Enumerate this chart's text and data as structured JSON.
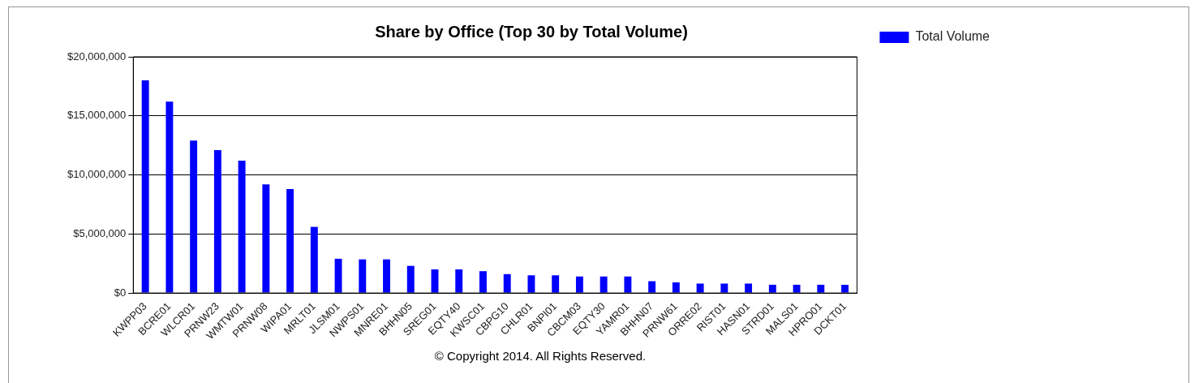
{
  "chart_data": {
    "type": "bar",
    "title": "Share by Office (Top 30 by Total Volume)",
    "categories": [
      "KWPP03",
      "BCRE01",
      "WLCR01",
      "PRNW23",
      "WMTW01",
      "PRNW08",
      "WIPA01",
      "MRLT01",
      "JLSM01",
      "NWPS01",
      "MNRE01",
      "BHHN05",
      "SREG01",
      "EQTY40",
      "KWSC01",
      "CBPG10",
      "CHLR01",
      "BNPI01",
      "CBCM03",
      "EQTY30",
      "YAMR01",
      "BHHN07",
      "PRNW61",
      "ORRE02",
      "RIST01",
      "HASN01",
      "STRD01",
      "MALS01",
      "HPRO01",
      "DCKT01"
    ],
    "series": [
      {
        "name": "Total Volume",
        "color": "#0000ff",
        "values": [
          18000000,
          16200000,
          12900000,
          12100000,
          11200000,
          9200000,
          8800000,
          5600000,
          2900000,
          2850000,
          2850000,
          2300000,
          2000000,
          2000000,
          1850000,
          1600000,
          1500000,
          1500000,
          1400000,
          1400000,
          1400000,
          1000000,
          900000,
          800000,
          800000,
          800000,
          700000,
          700000,
          700000,
          700000
        ]
      }
    ],
    "ylim": [
      0,
      20000000
    ],
    "yticks": [
      {
        "value": 0,
        "label": "$0"
      },
      {
        "value": 5000000,
        "label": "$5,000,000"
      },
      {
        "value": 10000000,
        "label": "$10,000,000"
      },
      {
        "value": 15000000,
        "label": "$15,000,000"
      },
      {
        "value": 20000000,
        "label": "$20,000,000"
      }
    ],
    "grid": "y",
    "legend": "top right",
    "annotations": [
      "© Copyright 2014.  All Rights Reserved."
    ]
  }
}
